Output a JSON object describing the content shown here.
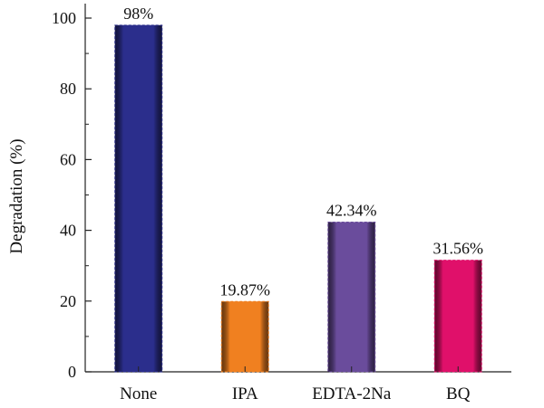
{
  "chart_data": {
    "type": "bar",
    "categories": [
      "None",
      "IPA",
      "EDTA-2Na",
      "BQ"
    ],
    "values": [
      98,
      19.87,
      42.34,
      31.56
    ],
    "data_labels": [
      "98%",
      "19.87%",
      "42.34%",
      "31.56%"
    ],
    "ylabel": "Degradation (%)",
    "xlabel": "",
    "ylim": [
      0,
      100
    ],
    "yticks": [
      0,
      20,
      40,
      60,
      80,
      100
    ],
    "grid": false,
    "colors": [
      "#2b2e8c",
      "#f08020",
      "#6a4c9c",
      "#e0106a"
    ]
  }
}
